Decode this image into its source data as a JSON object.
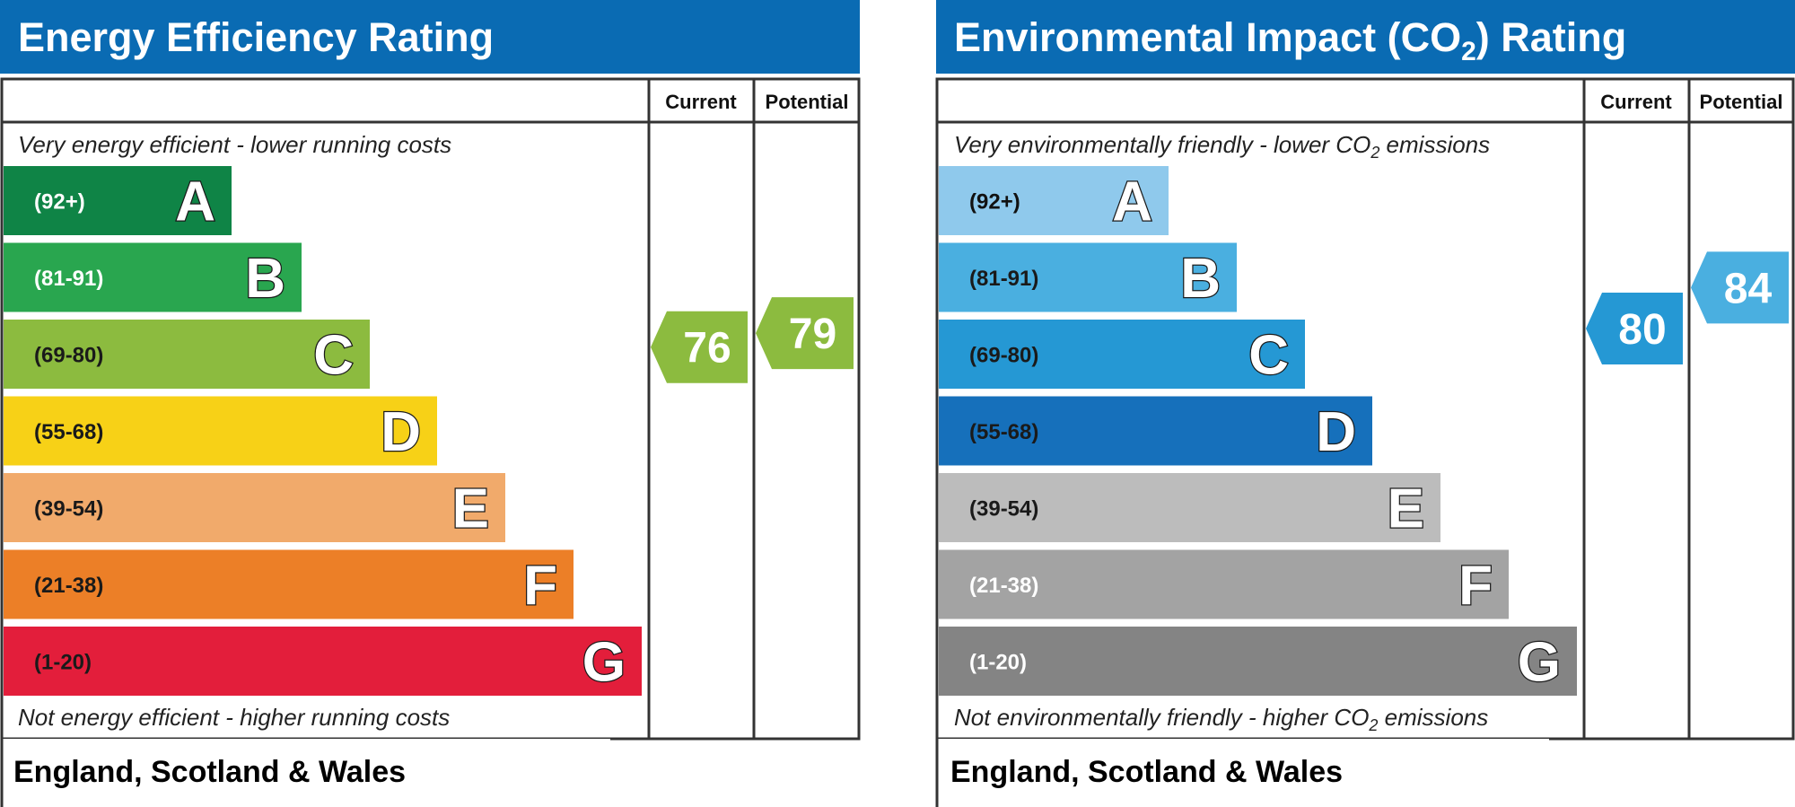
{
  "chart_data": [
    {
      "type": "bar",
      "title": "Energy Efficiency Rating",
      "columns": [
        "Current",
        "Potential"
      ],
      "top_note": "Very energy efficient - lower running costs",
      "bottom_note": "Not energy efficient - higher running costs",
      "region": "England, Scotland & Wales",
      "bands": [
        {
          "letter": "A",
          "range": "(92+)",
          "color": "#0f8446",
          "text_color": "#ffffff"
        },
        {
          "letter": "B",
          "range": "(81-91)",
          "color": "#29a64f",
          "text_color": "#ffffff"
        },
        {
          "letter": "C",
          "range": "(69-80)",
          "color": "#8cbb3f",
          "text_color": "#1a1a1a"
        },
        {
          "letter": "D",
          "range": "(55-68)",
          "color": "#f7d117",
          "text_color": "#1a1a1a"
        },
        {
          "letter": "E",
          "range": "(39-54)",
          "color": "#f1aa6b",
          "text_color": "#1a1a1a"
        },
        {
          "letter": "F",
          "range": "(21-38)",
          "color": "#ec7f27",
          "text_color": "#1a1a1a"
        },
        {
          "letter": "G",
          "range": "(1-20)",
          "color": "#e31e3b",
          "text_color": "#1a1a1a"
        }
      ],
      "current": {
        "value": 76,
        "band": "C",
        "color": "#8cbb3f"
      },
      "potential": {
        "value": 79,
        "band": "C",
        "color": "#8cbb3f"
      }
    },
    {
      "type": "bar",
      "title_prefix": "Environmental Impact (CO",
      "title_sub": "2",
      "title_suffix": ") Rating",
      "columns": [
        "Current",
        "Potential"
      ],
      "top_note_prefix": "Very environmentally friendly - lower CO",
      "top_note_sub": "2",
      "top_note_suffix": " emissions",
      "bottom_note_prefix": "Not environmentally friendly - higher CO",
      "bottom_note_sub": "2",
      "bottom_note_suffix": " emissions",
      "region": "England, Scotland & Wales",
      "bands": [
        {
          "letter": "A",
          "range": "(92+)",
          "color": "#8fc9ec",
          "text_color": "#111111"
        },
        {
          "letter": "B",
          "range": "(81-91)",
          "color": "#4aafe0",
          "text_color": "#1a1a1a"
        },
        {
          "letter": "C",
          "range": "(69-80)",
          "color": "#2598d4",
          "text_color": "#1a1a1a"
        },
        {
          "letter": "D",
          "range": "(55-68)",
          "color": "#1670bb",
          "text_color": "#1a1a1a"
        },
        {
          "letter": "E",
          "range": "(39-54)",
          "color": "#bcbcbc",
          "text_color": "#1a1a1a"
        },
        {
          "letter": "F",
          "range": "(21-38)",
          "color": "#a3a3a3",
          "text_color": "#ffffff"
        },
        {
          "letter": "G",
          "range": "(1-20)",
          "color": "#848484",
          "text_color": "#ffffff"
        }
      ],
      "current": {
        "value": 80,
        "band": "C",
        "color": "#2598d4"
      },
      "potential": {
        "value": 84,
        "band": "B",
        "color": "#4aafe0"
      }
    }
  ],
  "colors": {
    "header_blue": "#0a6bb3",
    "border": "#333333"
  }
}
